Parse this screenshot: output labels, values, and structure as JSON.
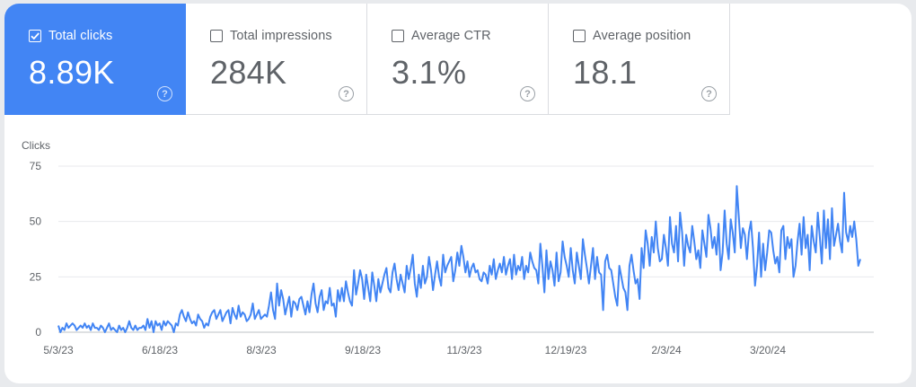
{
  "metrics": [
    {
      "label": "Total clicks",
      "value": "8.89K",
      "selected": true,
      "help": "?"
    },
    {
      "label": "Total impressions",
      "value": "284K",
      "selected": false,
      "help": "?"
    },
    {
      "label": "Average CTR",
      "value": "3.1%",
      "selected": false,
      "help": "?"
    },
    {
      "label": "Average position",
      "value": "18.1",
      "selected": false,
      "help": "?"
    }
  ],
  "colors": {
    "accent": "#4285f4",
    "line": "#4285f4",
    "grid": "#e8eaed"
  },
  "chart_data": {
    "type": "line",
    "ylabel": "Clicks",
    "xlabel": "",
    "ylim": [
      0,
      75
    ],
    "yticks": [
      0,
      25,
      50,
      75
    ],
    "grid": true,
    "x_start": "5/3/23",
    "x_end": "4/29/24",
    "xtick_labels": [
      "5/3/23",
      "6/18/23",
      "8/3/23",
      "9/18/23",
      "11/3/23",
      "12/19/23",
      "2/3/24",
      "3/20/24"
    ],
    "series": [
      {
        "values": [
          3,
          0,
          2,
          1,
          4,
          2,
          3,
          4,
          3,
          1,
          2,
          3,
          2,
          4,
          2,
          3,
          1,
          4,
          2,
          2,
          1,
          3,
          2,
          0,
          2,
          4,
          1,
          2,
          1,
          0,
          3,
          1,
          2,
          0,
          2,
          5,
          2,
          1,
          3,
          1,
          2,
          2,
          3,
          1,
          6,
          2,
          5,
          0,
          5,
          3,
          4,
          1,
          5,
          3,
          5,
          4,
          3,
          0,
          4,
          3,
          8,
          10,
          7,
          5,
          9,
          6,
          4,
          5,
          3,
          8,
          6,
          5,
          2,
          4,
          3,
          7,
          9,
          10,
          6,
          8,
          10,
          5,
          7,
          9,
          10,
          4,
          11,
          8,
          6,
          12,
          7,
          9,
          8,
          5,
          6,
          8,
          13,
          6,
          8,
          10,
          6,
          7,
          8,
          7,
          12,
          18,
          10,
          6,
          22,
          12,
          19,
          15,
          8,
          12,
          16,
          7,
          14,
          13,
          10,
          15,
          16,
          12,
          8,
          14,
          9,
          17,
          22,
          13,
          9,
          16,
          19,
          10,
          14,
          13,
          20,
          12,
          13,
          7,
          19,
          14,
          20,
          14,
          23,
          18,
          14,
          12,
          28,
          17,
          22,
          28,
          24,
          15,
          26,
          20,
          14,
          27,
          21,
          14,
          24,
          18,
          22,
          26,
          29,
          20,
          18,
          27,
          31,
          24,
          19,
          26,
          22,
          18,
          30,
          24,
          29,
          35,
          22,
          16,
          26,
          20,
          30,
          22,
          25,
          34,
          28,
          19,
          26,
          32,
          25,
          21,
          35,
          27,
          30,
          32,
          34,
          23,
          28,
          36,
          30,
          39,
          34,
          27,
          32,
          25,
          29,
          31,
          27,
          28,
          24,
          23,
          27,
          26,
          22,
          30,
          26,
          33,
          24,
          28,
          31,
          27,
          34,
          26,
          30,
          33,
          24,
          35,
          26,
          30,
          28,
          34,
          24,
          30,
          27,
          36,
          32,
          29,
          28,
          22,
          40,
          30,
          18,
          37,
          24,
          32,
          28,
          21,
          36,
          23,
          27,
          41,
          34,
          30,
          25,
          38,
          28,
          22,
          36,
          30,
          24,
          42,
          35,
          29,
          22,
          30,
          38,
          24,
          34,
          27,
          26,
          10,
          32,
          35,
          29,
          28,
          22,
          16,
          12,
          30,
          25,
          20,
          18,
          10,
          30,
          35,
          28,
          22,
          24,
          15,
          38,
          29,
          46,
          40,
          30,
          43,
          36,
          50,
          38,
          32,
          33,
          44,
          38,
          30,
          52,
          40,
          36,
          48,
          32,
          54,
          45,
          30,
          44,
          39,
          36,
          48,
          41,
          33,
          37,
          29,
          46,
          40,
          34,
          53,
          47,
          38,
          43,
          35,
          49,
          28,
          36,
          55,
          40,
          33,
          51,
          45,
          36,
          66,
          52,
          38,
          47,
          44,
          33,
          45,
          50,
          38,
          21,
          30,
          45,
          25,
          40,
          28,
          36,
          46,
          45,
          37,
          31,
          34,
          27,
          46,
          48,
          33,
          43,
          38,
          42,
          25,
          30,
          41,
          49,
          35,
          52,
          38,
          44,
          28,
          48,
          41,
          36,
          54,
          43,
          31,
          55,
          38,
          51,
          33,
          56,
          39,
          44,
          49,
          41,
          36,
          63,
          45,
          41,
          48,
          43,
          50,
          42,
          30,
          33
        ]
      }
    ]
  }
}
